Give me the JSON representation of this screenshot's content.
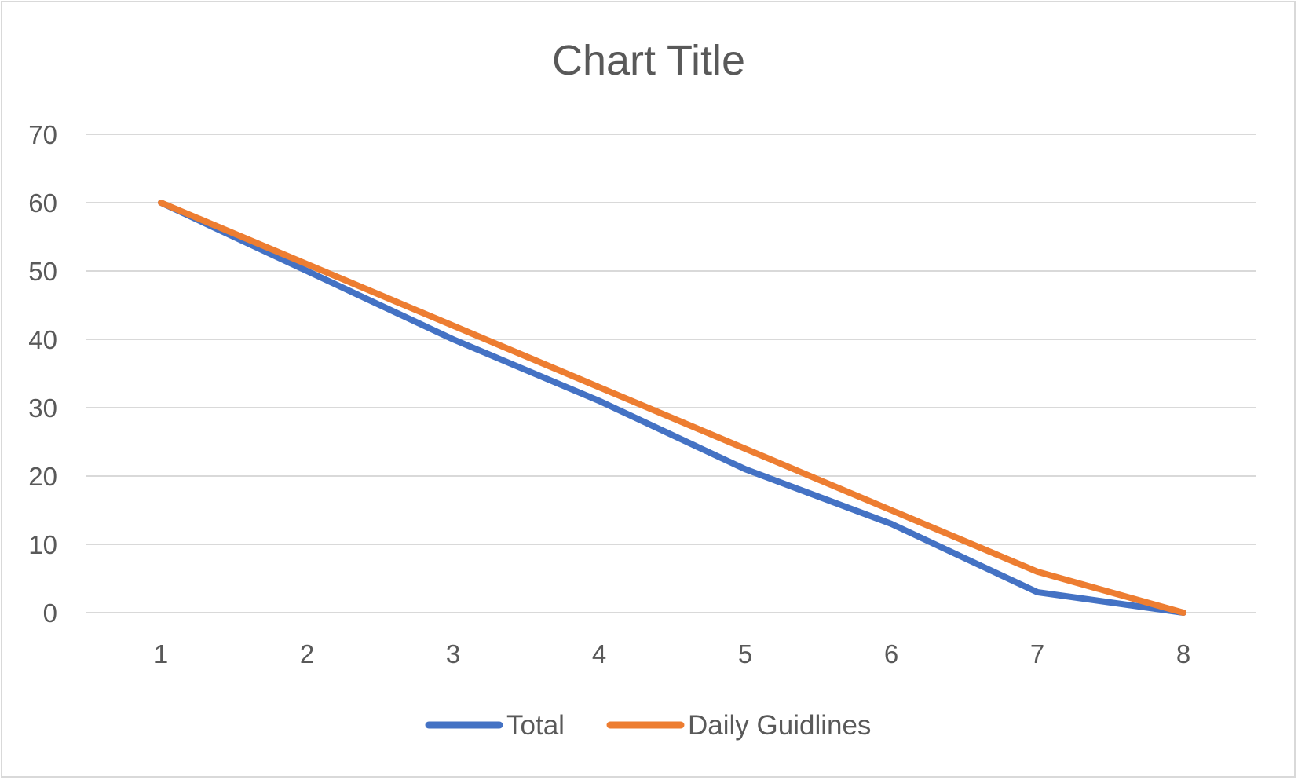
{
  "chart_data": {
    "type": "line",
    "title": "Chart Title",
    "x": [
      1,
      2,
      3,
      4,
      5,
      6,
      7,
      8
    ],
    "ylim": [
      0,
      70
    ],
    "yticks": [
      0,
      10,
      20,
      30,
      40,
      50,
      60,
      70
    ],
    "grid": true,
    "legend_position": "bottom",
    "series": [
      {
        "name": "Total",
        "color": "#4472c4",
        "values": [
          60,
          50,
          40,
          31,
          21,
          13,
          3,
          0
        ]
      },
      {
        "name": "Daily Guidlines",
        "color": "#ed7d31",
        "values": [
          60,
          51,
          42,
          33,
          24,
          15,
          6,
          0
        ]
      }
    ]
  }
}
